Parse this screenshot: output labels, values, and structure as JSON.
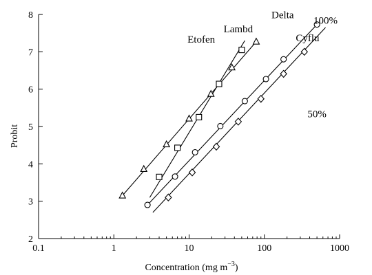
{
  "chart_data": {
    "type": "scatter",
    "xscale": "log",
    "xlabel": "Concentration (mg m",
    "xlabel_superscript": "−3",
    "xlabel_suffix": ")",
    "ylabel": "Probit",
    "xlim": [
      0.1,
      1000
    ],
    "ylim": [
      2,
      8
    ],
    "x_ticks": [
      0.1,
      1,
      10,
      100,
      1000
    ],
    "x_tick_labels": [
      "0.1",
      "1",
      "10",
      "100",
      "1000"
    ],
    "y_ticks": [
      2,
      3,
      4,
      5,
      6,
      7,
      8
    ],
    "y_tick_labels": [
      "2",
      "3",
      "4",
      "5",
      "6",
      "7",
      "8"
    ],
    "grid": false,
    "annotations": [
      {
        "text": "100%",
        "x": 650,
        "y": 7.75
      },
      {
        "text": "50%",
        "x": 500,
        "y": 5.25
      }
    ],
    "series": [
      {
        "name": "Lambd",
        "marker": "triangle",
        "x": [
          1.3,
          2.5,
          5.0,
          10.0,
          19.5,
          37.0,
          78.0
        ],
        "y": [
          3.15,
          3.86,
          4.52,
          5.21,
          5.87,
          6.58,
          7.27
        ],
        "fit": [
          [
            1.3,
            3.15
          ],
          [
            78.0,
            7.27
          ]
        ],
        "label_at": [
          45,
          7.52
        ]
      },
      {
        "name": "Etofen",
        "marker": "square",
        "x": [
          4.0,
          7.0,
          13.5,
          25.0,
          50.0
        ],
        "y": [
          3.65,
          4.43,
          5.25,
          6.14,
          7.05
        ],
        "fit": [
          [
            3.0,
            3.1
          ],
          [
            55.0,
            7.3
          ]
        ],
        "label_at": [
          14.5,
          7.25
        ]
      },
      {
        "name": "Delta",
        "marker": "circle",
        "x": [
          2.8,
          6.5,
          12.0,
          26.0,
          55.0,
          105.0,
          180.0,
          500.0
        ],
        "y": [
          2.9,
          3.66,
          4.31,
          5.01,
          5.68,
          6.27,
          6.8,
          7.73
        ],
        "fit": [
          [
            2.8,
            2.9
          ],
          [
            500.0,
            7.73
          ]
        ],
        "label_at": [
          175,
          7.9
        ]
      },
      {
        "name": "Cyflu",
        "marker": "diamond",
        "x": [
          5.3,
          11.0,
          23.0,
          45.0,
          90.0,
          180.0,
          340.0
        ],
        "y": [
          3.1,
          3.77,
          4.46,
          5.13,
          5.74,
          6.41,
          7.0
        ],
        "fit": [
          [
            3.3,
            2.7
          ],
          [
            650.0,
            7.65
          ]
        ],
        "label_at": [
          375,
          7.28
        ]
      }
    ]
  }
}
